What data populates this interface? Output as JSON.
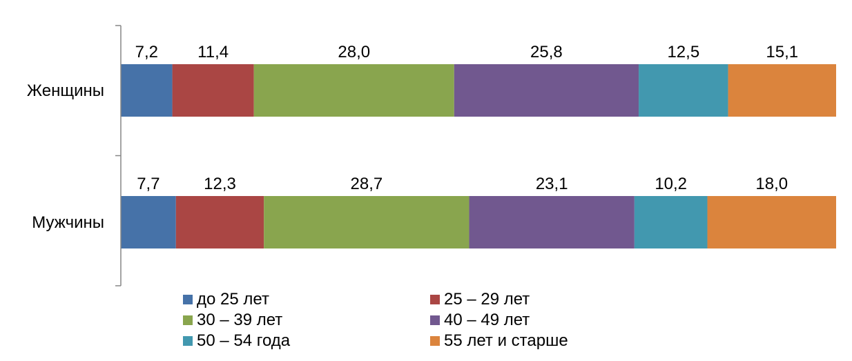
{
  "chart_data": {
    "type": "bar",
    "orientation": "horizontal",
    "stacked": true,
    "normalized_percent": true,
    "title": "",
    "xlabel": "",
    "ylabel": "",
    "xlim": [
      0,
      100
    ],
    "grid": false,
    "value_axis_visible": false,
    "data_labels": true,
    "legend_position": "bottom",
    "categories": [
      "Женщины",
      "Мужчины"
    ],
    "series": [
      {
        "name": "до 25 лет",
        "color": "#4672A8",
        "values": [
          7.2,
          7.7
        ],
        "labels": [
          "7,2",
          "7,7"
        ]
      },
      {
        "name": "25 – 29 лет",
        "color": "#AA4644",
        "values": [
          11.4,
          12.3
        ],
        "labels": [
          "11,4",
          "12,3"
        ]
      },
      {
        "name": "30 – 39 лет",
        "color": "#89A54E",
        "values": [
          28.0,
          28.7
        ],
        "labels": [
          "28,0",
          "28,7"
        ]
      },
      {
        "name": "40 – 49 лет",
        "color": "#71588F",
        "values": [
          25.8,
          23.1
        ],
        "labels": [
          "25,8",
          "23,1"
        ]
      },
      {
        "name": "50 – 54 года",
        "color": "#4298AF",
        "values": [
          12.5,
          10.2
        ],
        "labels": [
          "12,5",
          "10,2"
        ]
      },
      {
        "name": "55 лет и старше",
        "color": "#DB843D",
        "values": [
          15.1,
          18.0
        ],
        "labels": [
          "15,1",
          "18,0"
        ]
      }
    ]
  }
}
